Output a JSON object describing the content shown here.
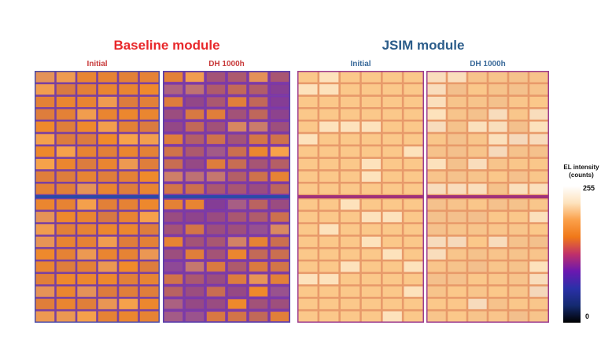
{
  "groups": [
    {
      "title": "Baseline module",
      "color": "#e8282b",
      "panels": [
        {
          "label": "Initial",
          "degradation": 0.15,
          "border": "#4a4aa8"
        },
        {
          "label": "DH 1000h",
          "degradation": 0.75,
          "border": "#5a40a8"
        }
      ]
    },
    {
      "title": "JSIM module",
      "color": "#2b5c8a",
      "panels": [
        {
          "label": "Initial",
          "degradation": 0.0,
          "border": "#9c3a8c"
        },
        {
          "label": "DH 1000h",
          "degradation": 0.05,
          "border": "#9c3a8c"
        }
      ]
    }
  ],
  "panel_label_colors": [
    "#c83a3a",
    "#c83a3a",
    "#3a6a9a",
    "#3a6a9a"
  ],
  "colorbar": {
    "title_line1": "EL intensity",
    "title_line2": "(counts)",
    "max_label": "255",
    "min_label": "0",
    "stops": [
      "#ffffff",
      "#fde3be",
      "#fba04a",
      "#f07818",
      "#c0306a",
      "#6a18b0",
      "#2a30a8",
      "#142a70",
      "#000000"
    ]
  }
}
